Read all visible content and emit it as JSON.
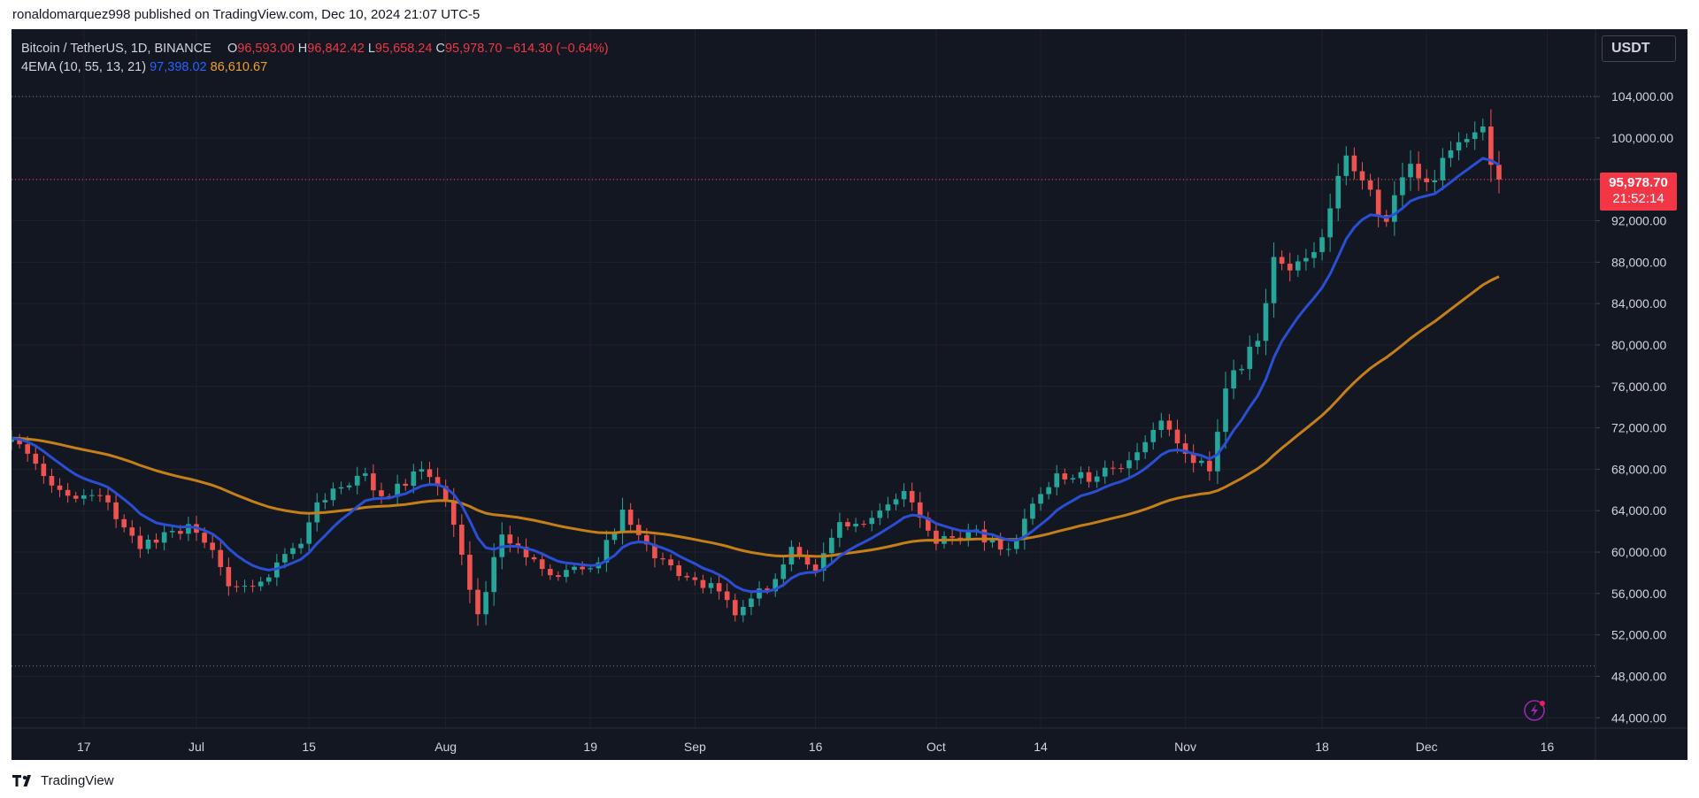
{
  "header": {
    "publish_text": "ronaldomarquez998 published on TradingView.com, Dec 10, 2024 21:07 UTC-5"
  },
  "legend": {
    "symbol": "Bitcoin / TetherUS, 1D, BINANCE",
    "o_label": "O",
    "o_value": "96,593.00",
    "h_label": "H",
    "h_value": "96,842.42",
    "l_label": "L",
    "l_value": "95,658.24",
    "c_label": "C",
    "c_value": "95,978.70",
    "change": "−614.30 (−0.64%)",
    "indicator_name": "4EMA (10, 55, 13, 21)",
    "ema_fast_value": "97,398.02",
    "ema_slow_value": "86,610.67"
  },
  "currency_button": {
    "label": "USDT"
  },
  "price_badge": {
    "price": "95,978.70",
    "countdown": "21:52:14"
  },
  "footer": {
    "brand": "TradingView"
  },
  "colors": {
    "up": "#26a69a",
    "down": "#ef5350",
    "ema_fast": "#2a4ed4",
    "ema_slow": "#c57f18",
    "background": "#131722",
    "grid": "#1f222d",
    "axis_text": "#d1d4dc"
  },
  "icons": {
    "bottom_right": "lightning-icon",
    "logo": "tradingview-logo-icon"
  },
  "chart_data": {
    "type": "candlestick",
    "symbol": "Bitcoin / TetherUS",
    "timeframe": "1D",
    "exchange": "BINANCE",
    "y_ticks": [
      44000,
      48000,
      52000,
      56000,
      60000,
      64000,
      68000,
      72000,
      76000,
      80000,
      84000,
      88000,
      92000,
      96000,
      100000,
      104000
    ],
    "y_tick_labels": [
      "44,000.00",
      "48,000.00",
      "52,000.00",
      "56,000.00",
      "60,000.00",
      "64,000.00",
      "68,000.00",
      "72,000.00",
      "76,000.00",
      "80,000.00",
      "84,000.00",
      "88,000.00",
      "92,000.00",
      "96,000.00",
      "100,000.00",
      "104,000.00"
    ],
    "ylim": [
      43000,
      110500
    ],
    "x_ticks": [
      {
        "label": "17",
        "date": "2024-06-17"
      },
      {
        "label": "Jul",
        "date": "2024-07-01"
      },
      {
        "label": "15",
        "date": "2024-07-15"
      },
      {
        "label": "Aug",
        "date": "2024-08-01"
      },
      {
        "label": "19",
        "date": "2024-08-19"
      },
      {
        "label": "Sep",
        "date": "2024-09-01"
      },
      {
        "label": "16",
        "date": "2024-09-16"
      },
      {
        "label": "Oct",
        "date": "2024-10-01"
      },
      {
        "label": "14",
        "date": "2024-10-14"
      },
      {
        "label": "Nov",
        "date": "2024-11-01"
      },
      {
        "label": "18",
        "date": "2024-11-18"
      },
      {
        "label": "Dec",
        "date": "2024-12-01"
      },
      {
        "label": "16",
        "date": "2024-12-16"
      }
    ],
    "xlim": [
      "2024-06-08",
      "2024-12-22"
    ],
    "reference_lines": [
      104000,
      49000
    ],
    "last_price": 95978.7,
    "closes": [
      {
        "date": "2024-06-08",
        "close": 71000
      },
      {
        "date": "2024-06-10",
        "close": 69500
      },
      {
        "date": "2024-06-14",
        "close": 66000
      },
      {
        "date": "2024-06-20",
        "close": 64800
      },
      {
        "date": "2024-06-24",
        "close": 60300
      },
      {
        "date": "2024-06-30",
        "close": 62700
      },
      {
        "date": "2024-07-03",
        "close": 60200
      },
      {
        "date": "2024-07-05",
        "close": 56700
      },
      {
        "date": "2024-07-08",
        "close": 56700
      },
      {
        "date": "2024-07-14",
        "close": 60800
      },
      {
        "date": "2024-07-16",
        "close": 64800
      },
      {
        "date": "2024-07-22",
        "close": 67600
      },
      {
        "date": "2024-07-24",
        "close": 65400
      },
      {
        "date": "2024-07-29",
        "close": 68000
      },
      {
        "date": "2024-08-01",
        "close": 65000
      },
      {
        "date": "2024-08-05",
        "close": 54000
      },
      {
        "date": "2024-08-08",
        "close": 61700
      },
      {
        "date": "2024-08-12",
        "close": 59300
      },
      {
        "date": "2024-08-15",
        "close": 57600
      },
      {
        "date": "2024-08-20",
        "close": 59000
      },
      {
        "date": "2024-08-23",
        "close": 64100
      },
      {
        "date": "2024-08-27",
        "close": 59400
      },
      {
        "date": "2024-09-01",
        "close": 57300
      },
      {
        "date": "2024-09-04",
        "close": 56200
      },
      {
        "date": "2024-09-06",
        "close": 53900
      },
      {
        "date": "2024-09-11",
        "close": 57400
      },
      {
        "date": "2024-09-13",
        "close": 60500
      },
      {
        "date": "2024-09-16",
        "close": 58200
      },
      {
        "date": "2024-09-19",
        "close": 62900
      },
      {
        "date": "2024-09-23",
        "close": 63300
      },
      {
        "date": "2024-09-27",
        "close": 65900
      },
      {
        "date": "2024-10-01",
        "close": 60800
      },
      {
        "date": "2024-10-05",
        "close": 62000
      },
      {
        "date": "2024-10-10",
        "close": 60300
      },
      {
        "date": "2024-10-14",
        "close": 65600
      },
      {
        "date": "2024-10-16",
        "close": 67600
      },
      {
        "date": "2024-10-21",
        "close": 67300
      },
      {
        "date": "2024-10-24",
        "close": 68100
      },
      {
        "date": "2024-10-29",
        "close": 72700
      },
      {
        "date": "2024-11-01",
        "close": 69500
      },
      {
        "date": "2024-11-04",
        "close": 67800
      },
      {
        "date": "2024-11-06",
        "close": 75800
      },
      {
        "date": "2024-11-10",
        "close": 80400
      },
      {
        "date": "2024-11-12",
        "close": 88500
      },
      {
        "date": "2024-11-14",
        "close": 87200
      },
      {
        "date": "2024-11-18",
        "close": 90400
      },
      {
        "date": "2024-11-21",
        "close": 98300
      },
      {
        "date": "2024-11-26",
        "close": 91900
      },
      {
        "date": "2024-11-29",
        "close": 97500
      },
      {
        "date": "2024-12-02",
        "close": 95900
      },
      {
        "date": "2024-12-04",
        "close": 98800
      },
      {
        "date": "2024-12-06",
        "close": 99900
      },
      {
        "date": "2024-12-08",
        "close": 101100
      },
      {
        "date": "2024-12-09",
        "close": 97400
      },
      {
        "date": "2024-12-10",
        "close": 95978.7
      }
    ],
    "ema_fast_value": 97398.02,
    "ema_slow_value": 86610.67
  }
}
